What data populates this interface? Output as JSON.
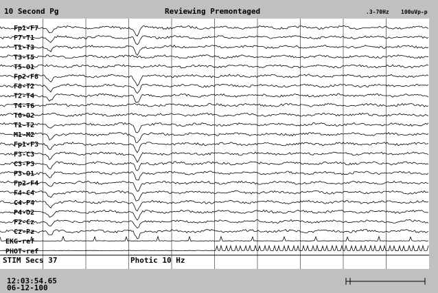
{
  "header": {
    "page": "10 Second Pg",
    "mode": "Reviewing Premontaged",
    "filter": ".3-70Hz",
    "scale": "100uVp-p"
  },
  "channels": [
    "Fp1-F7",
    "F7-T1",
    "T1-T3",
    "T3-T5",
    "T5-O1",
    "Fp2-F8",
    "F8-T2",
    "T2-T4",
    "T4-T6",
    "T6-O2",
    "T1-T2",
    "M1-M2",
    "Fp1-F3",
    "F3-C3",
    "C3-P3",
    "P3-O1",
    "Fp2-F4",
    "F4-C4",
    "C4-P4",
    "P4-O2",
    "Fz-Cz",
    "Cz-Pz",
    "EKG-ref",
    "PHOT-ref"
  ],
  "status": {
    "stim": "STIM Secs 37",
    "photic": "Photic 10 Hz"
  },
  "footer": {
    "time": "12:03:54.65",
    "date": "06-12-100"
  }
}
